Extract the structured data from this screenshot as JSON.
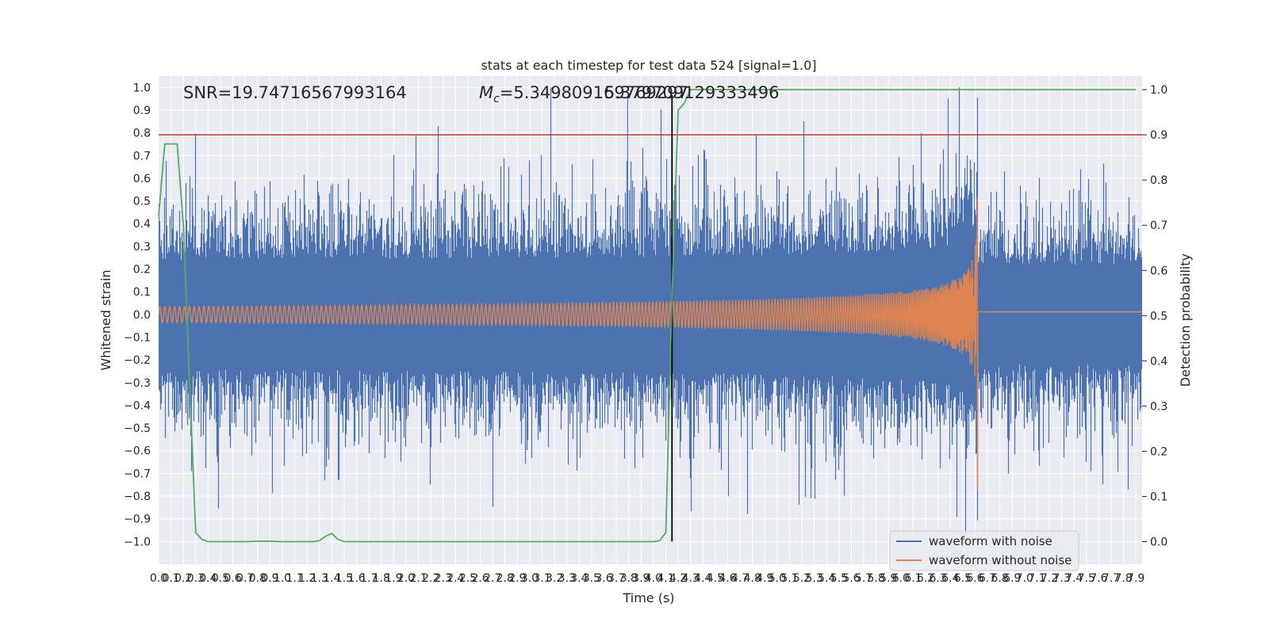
{
  "chart_data": {
    "type": "line",
    "title": "stats at each timestep for test data 524 [signal=1.0]",
    "xlabel": "Time (s)",
    "ylabel": "Whitened strain",
    "ylabel_right": "Detection probability",
    "xlim": [
      0.0,
      7.95
    ],
    "ylim": [
      -1.1,
      1.05
    ],
    "ylim_right": [
      -0.05,
      1.03
    ],
    "x_ticks": [
      "0.0",
      "0.1",
      "0.2",
      "0.3",
      "0.4",
      "0.5",
      "0.6",
      "0.7",
      "0.8",
      "0.9",
      "1.0",
      "1.1",
      "1.2",
      "1.3",
      "1.4",
      "1.5",
      "1.6",
      "1.7",
      "1.8",
      "1.9",
      "2.0",
      "2.1",
      "2.2",
      "2.3",
      "2.4",
      "2.5",
      "2.6",
      "2.7",
      "2.8",
      "2.9",
      "3.0",
      "3.1",
      "3.2",
      "3.3",
      "3.4",
      "3.5",
      "3.6",
      "3.7",
      "3.8",
      "3.9",
      "4.0",
      "4.1",
      "4.2",
      "4.3",
      "4.4",
      "4.5",
      "4.6",
      "4.7",
      "4.8",
      "4.9",
      "5.0",
      "5.1",
      "5.2",
      "5.3",
      "5.4",
      "5.5",
      "5.6",
      "5.7",
      "5.8",
      "5.9",
      "6.0",
      "6.1",
      "6.2",
      "6.3",
      "6.4",
      "6.5",
      "6.6",
      "6.7",
      "6.8",
      "6.9",
      "7.0",
      "7.1",
      "7.2",
      "7.3",
      "7.4",
      "7.5",
      "7.6",
      "7.7",
      "7.8",
      "7.9"
    ],
    "y_ticks": [
      "1.0",
      "0.9",
      "0.8",
      "0.7",
      "0.6",
      "0.5",
      "0.4",
      "0.3",
      "0.2",
      "0.1",
      "0.0",
      "−0.1",
      "−0.2",
      "−0.3",
      "−0.4",
      "−0.5",
      "−0.6",
      "−0.7",
      "−0.8",
      "−0.9",
      "−1.0"
    ],
    "y_ticks_right": [
      "1.0",
      "0.9",
      "0.8",
      "0.7",
      "0.6",
      "0.5",
      "0.4",
      "0.3",
      "0.2",
      "0.1",
      "0.0"
    ],
    "annotations": {
      "snr": "SNR=19.74716567993164",
      "mc_symbol": "M",
      "mc_sub": "c",
      "mc_value": "=5.349809169769297",
      "overlap": "5.379709129333496"
    },
    "threshold_line": {
      "axis": "right",
      "value": 0.9,
      "color": "#c03d3e"
    },
    "merger_time": 4.15,
    "chirp_end_time": 6.62,
    "series": [
      {
        "name": "waveform with noise",
        "color": "#4c72b0",
        "noise_amplitude_typical": 0.35,
        "noise_amplitude_max": 1.0
      },
      {
        "name": "waveform without noise",
        "color": "#dd8452",
        "amplitude_start": 0.035,
        "amplitude_peak": 0.45,
        "zero_after": 6.62
      },
      {
        "name": "detection probability",
        "axis": "right",
        "color": "#55a868",
        "x": [
          0.0,
          0.05,
          0.1,
          0.15,
          0.2,
          0.25,
          0.3,
          0.35,
          0.4,
          0.5,
          0.6,
          0.7,
          0.8,
          0.9,
          1.0,
          1.1,
          1.2,
          1.25,
          1.3,
          1.35,
          1.4,
          1.45,
          1.5,
          1.55,
          1.6,
          2.0,
          2.5,
          3.0,
          3.5,
          4.0,
          4.05,
          4.1,
          4.15,
          4.2,
          4.25,
          4.3,
          4.35,
          4.4,
          4.5,
          5.0,
          6.0,
          7.0,
          7.9
        ],
        "values": [
          0.72,
          0.88,
          0.88,
          0.88,
          0.7,
          0.35,
          0.02,
          0.005,
          0.0,
          0.0,
          0.0,
          0.0,
          0.001,
          0.001,
          0.0,
          0.0,
          0.0,
          0.0,
          0.002,
          0.012,
          0.018,
          0.005,
          0.0,
          0.0,
          0.0,
          0.0,
          0.0,
          0.0,
          0.0,
          0.0,
          0.002,
          0.02,
          0.55,
          0.955,
          0.97,
          1.0,
          1.0,
          1.0,
          1.0,
          1.0,
          1.0,
          1.0,
          1.0
        ]
      }
    ],
    "legend": {
      "placement": "lower-right",
      "entries": [
        "waveform with noise",
        "waveform without noise"
      ]
    }
  }
}
